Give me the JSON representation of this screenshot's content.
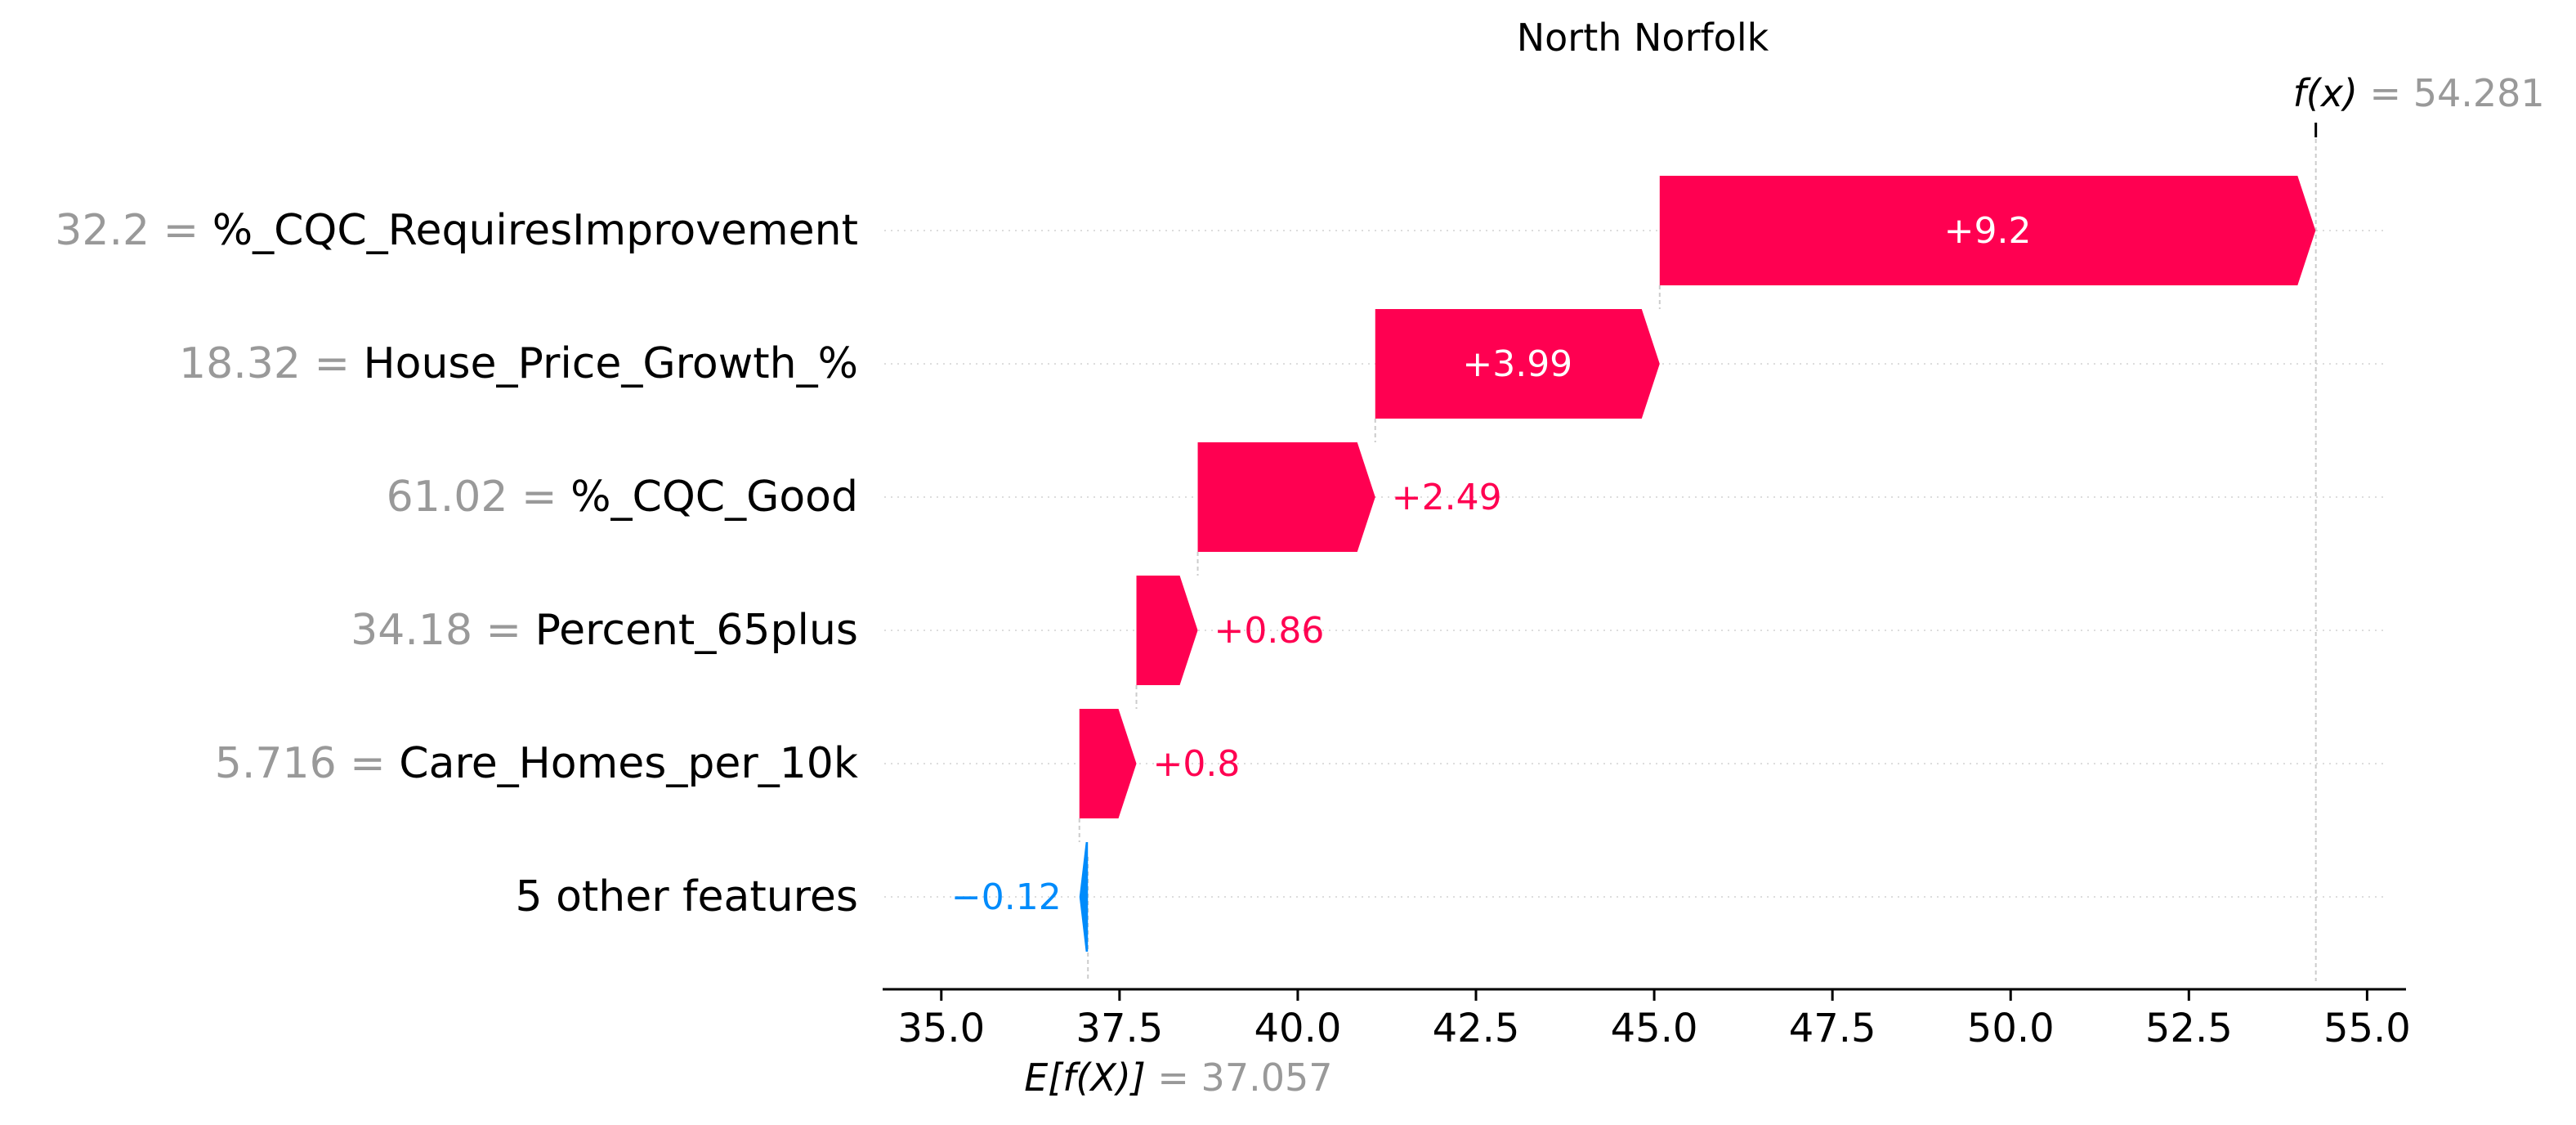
{
  "colors": {
    "positive": "#ff0051",
    "negative": "#008bfb",
    "value_gray": "#999999",
    "text": "#000000",
    "white": "#ffffff",
    "axis": "#000000",
    "guide": "#cccccc"
  },
  "chart_data": {
    "type": "waterfall",
    "title": "North Norfolk",
    "base_value": 37.057,
    "output_value": 54.281,
    "fx_label": "f(x)",
    "fx_value_text": "54.281",
    "ex_label": "E[f(X)]",
    "ex_value_text": "37.057",
    "xlim": [
      34.2,
      55.5
    ],
    "x_ticks": [
      35.0,
      37.5,
      40.0,
      42.5,
      45.0,
      47.5,
      50.0,
      52.5,
      55.0
    ],
    "x_tick_labels": [
      "35.0",
      "37.5",
      "40.0",
      "42.5",
      "45.0",
      "47.5",
      "50.0",
      "52.5",
      "55.0"
    ],
    "features": [
      {
        "value_text": "32.2",
        "name": "%_CQC_RequiresImprovement",
        "contribution": 9.2,
        "label": "+9.2"
      },
      {
        "value_text": "18.32",
        "name": "House_Price_Growth_%",
        "contribution": 3.99,
        "label": "+3.99"
      },
      {
        "value_text": "61.02",
        "name": "%_CQC_Good",
        "contribution": 2.49,
        "label": "+2.49"
      },
      {
        "value_text": "34.18",
        "name": "Percent_65plus",
        "contribution": 0.86,
        "label": "+0.86"
      },
      {
        "value_text": "5.716",
        "name": "Care_Homes_per_10k",
        "contribution": 0.8,
        "label": "+0.8"
      },
      {
        "value_text": "",
        "name": "5 other features",
        "contribution": -0.12,
        "label": "−0.12"
      }
    ]
  }
}
